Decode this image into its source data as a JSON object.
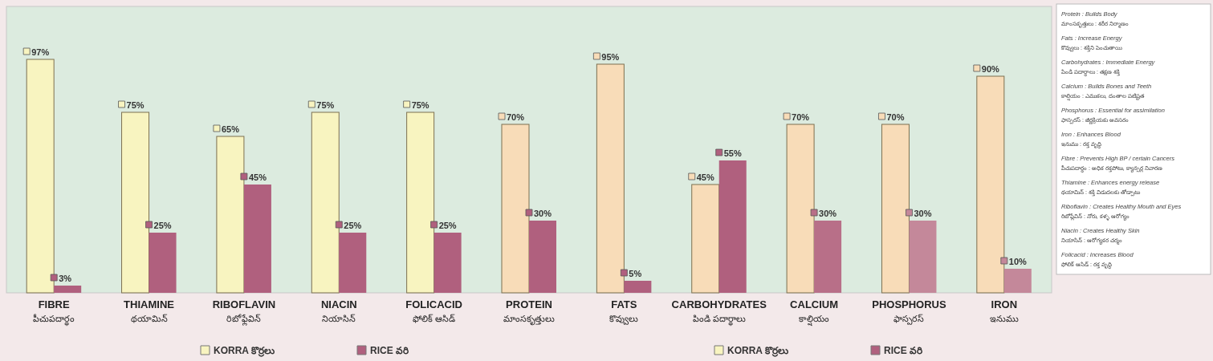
{
  "chart_data": {
    "type": "bar",
    "categories": [
      "FIBRE\nపీచుపదార్థం",
      "THIAMINE\nథయామిన్",
      "RIBOFLAVIN\nరిబోఫ్లేవిన్",
      "NIACIN\nనియాసిన్",
      "FOLICACID\nఫోలిక్ ఆసిడ్",
      "PROTEIN\nమాంసకృత్తులు",
      "FATS\nకొవ్వులు",
      "CARBOHYDRATES\nపిండి పదార్థాలు",
      "CALCIUM\nకాల్షియం",
      "PHOSPHORUS\nఫాస్పరస్",
      "IRON\nఇనుము"
    ],
    "series": [
      {
        "name": "KORRA కొర్రలు",
        "color": "#f8f4c0",
        "colors": [
          "#f8f4c0",
          "#f8f4c0",
          "#f8f4c0",
          "#f8f4c0",
          "#f8f4c0",
          "#f8dcb8",
          "#f8dcb8",
          "#f8dcb8",
          "#f8dcb8",
          "#f8dcb8",
          "#f8dcb8"
        ],
        "values": [
          97,
          75,
          65,
          75,
          75,
          70,
          95,
          45,
          70,
          70,
          90
        ],
        "value_labels": [
          "97%",
          "75%",
          "65%",
          "75%",
          "75%",
          "70%",
          "95%",
          "45%",
          "70%",
          "70%",
          "90%"
        ]
      },
      {
        "name": "RICE వరి",
        "color": "#b0607e",
        "colors": [
          "#b0607e",
          "#b0607e",
          "#b0607e",
          "#b0607e",
          "#b0607e",
          "#b0607e",
          "#b0607e",
          "#b0607e",
          "#b86f88",
          "#c4889a",
          "#c4889a"
        ],
        "values": [
          3,
          25,
          45,
          25,
          25,
          30,
          5,
          55,
          30,
          30,
          10
        ],
        "value_labels": [
          "3%",
          "25%",
          "45%",
          "25%",
          "25%",
          "30%",
          "5%",
          "55%",
          "30%",
          "30%",
          "10%"
        ]
      }
    ],
    "ylim": [
      0,
      119
    ],
    "tick_labels": "x",
    "legend": "bottom",
    "annotations": [
      "Protein : Builds Body\nమాంసకృత్తులు : శరీర నిర్మాణం",
      "Fats : Increase Energy\nకొవ్వులు : శక్తిని పెంచుతాయి",
      "Carbohydrates : Immediate Energy\nపిండి పదార్థాలు : తక్షణ శక్తి",
      "Calcium : Builds Bones and Teeth\nకాల్షియం : ఎముకలు, దంతాల పటిష్టత",
      "Phosphorus : Essential for assimilation\nఫాస్పరస్ : జీర్ణక్రియకు అవసరం",
      "Iron : Enhances Blood\nఇనుము : రక్త వృద్ధి",
      "Fibre : Prevents High BP / certain Cancers\nపీచుపదార్థం : అధిక రక్తపోటు, క్యాన్సర్ల నివారణ",
      "Thiamine : Enhances energy release\nథయామిన్ : శక్తి విడుదలకు తోడ్పాటు",
      "Riboflavin : Creates Healthy Mouth and Eyes\nరిబోఫ్లేవిన్ : నోరు, కళ్ళ ఆరోగ్యం",
      "Niacin : Creates Healthy Skin\nనియాసిన్ : ఆరోగ్యకర చర్మం",
      "Folicacid : Increases Blood\nఫోలిక్ ఆసిడ్ : రక్త వృద్ధి"
    ]
  }
}
